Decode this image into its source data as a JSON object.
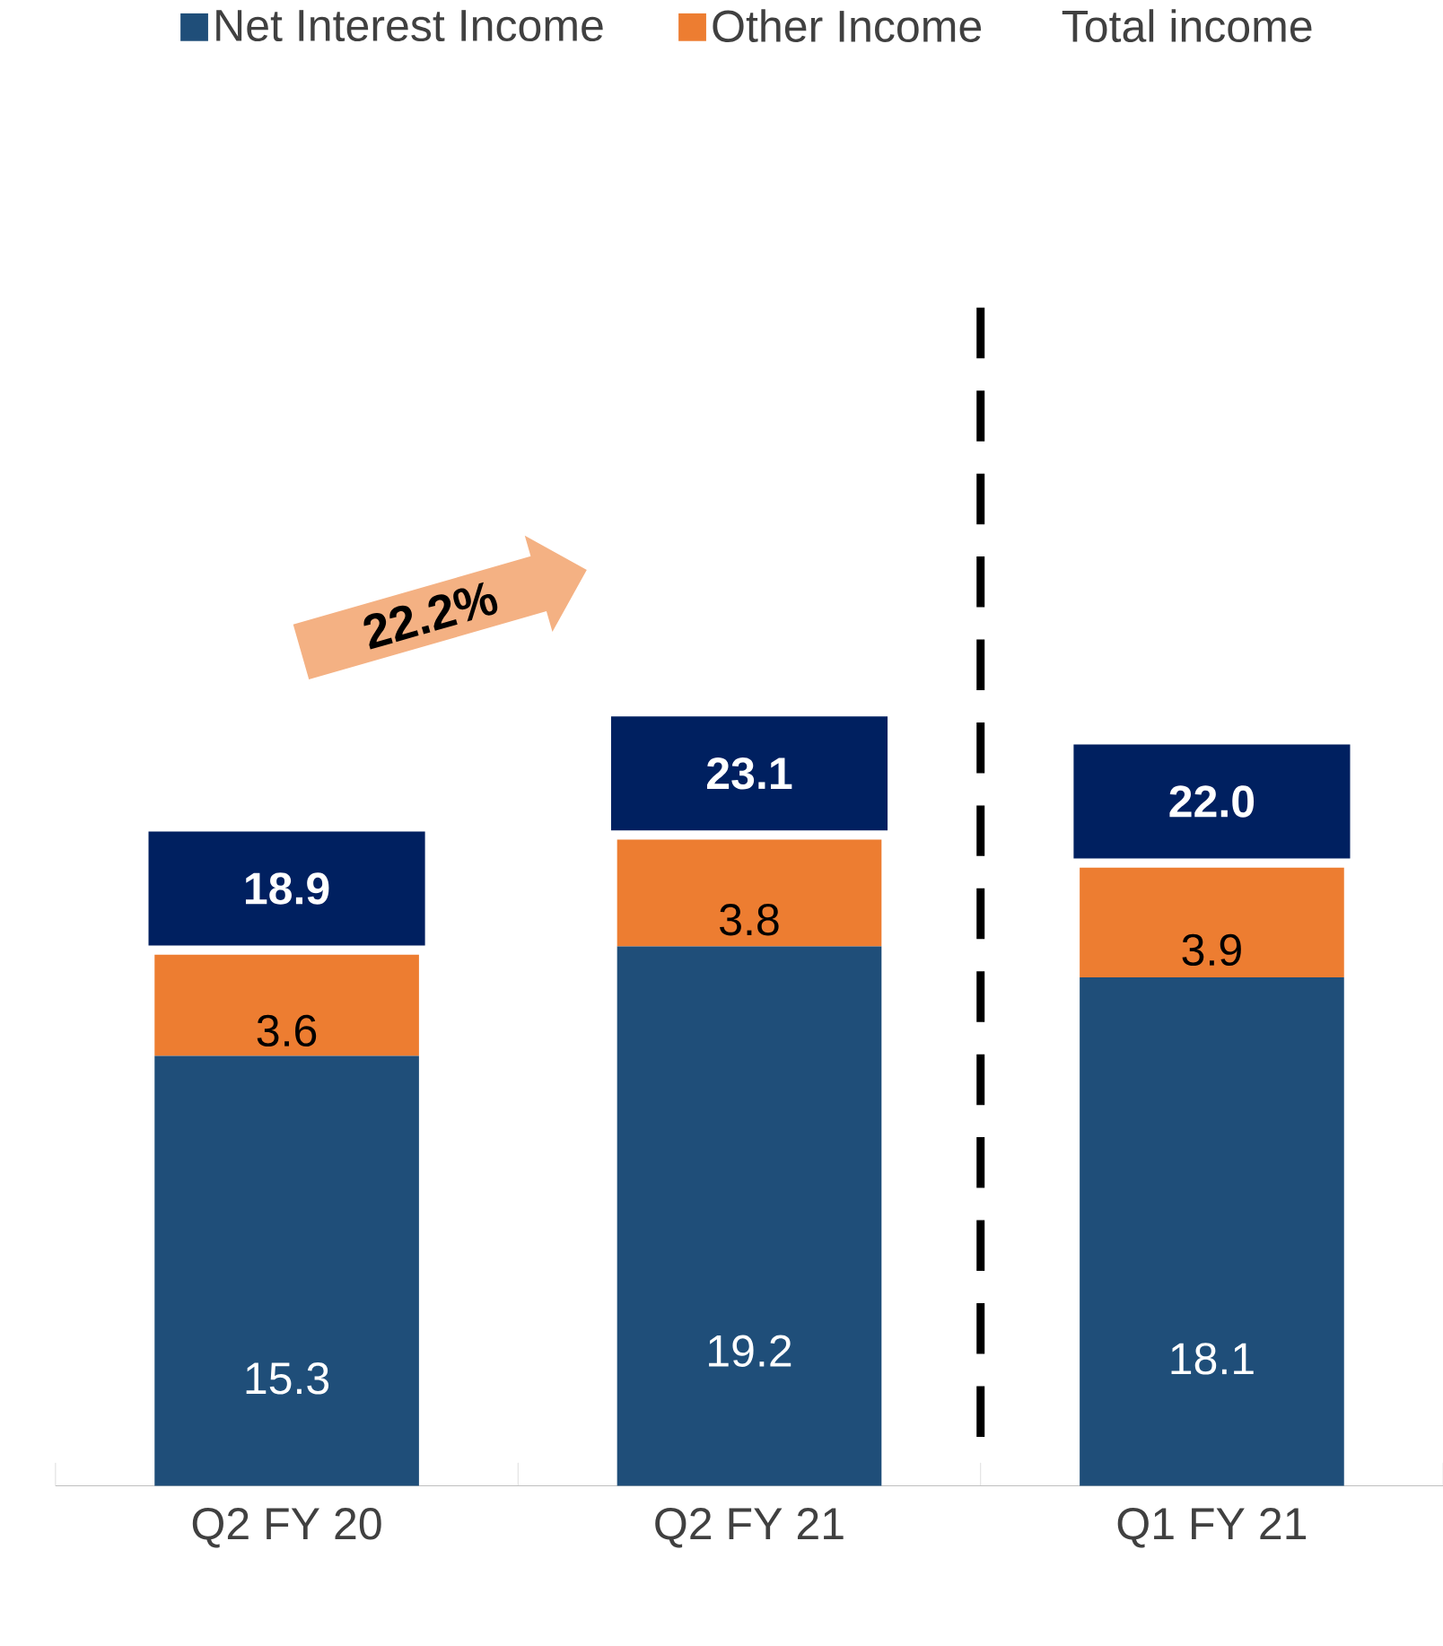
{
  "chart_data": {
    "type": "bar",
    "stacked": true,
    "categories": [
      "Q2 FY 20",
      "Q2 FY 21",
      "Q1 FY 21"
    ],
    "series": [
      {
        "name": "Net Interest Income",
        "color": "#1f4e79",
        "values": [
          15.3,
          19.2,
          18.1
        ]
      },
      {
        "name": "Other Income",
        "color": "#ed7d31",
        "values": [
          3.6,
          3.8,
          3.9
        ]
      }
    ],
    "data_labels": true,
    "totals": [
      "18.9",
      "23.1",
      "22.0"
    ],
    "legend": "top",
    "annotations": [
      "Total income",
      "22.2%"
    ]
  }
}
